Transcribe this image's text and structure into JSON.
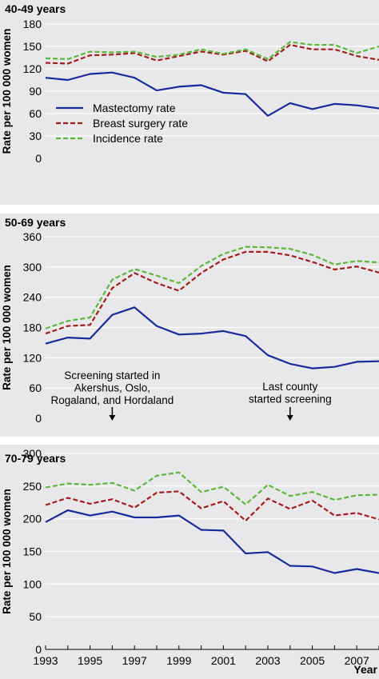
{
  "chart_data": [
    {
      "type": "line",
      "title": "40-49 years",
      "ylabel": "Rate per 100 000 women",
      "xlabel": "",
      "ylim": [
        0,
        180
      ],
      "yticks": [
        0,
        30,
        60,
        90,
        120,
        150,
        180
      ],
      "xlim": [
        1993,
        2008
      ],
      "grid": true,
      "legend": "lower-left",
      "x": [
        1993,
        1994,
        1995,
        1996,
        1997,
        1998,
        1999,
        2000,
        2001,
        2002,
        2003,
        2004,
        2005,
        2006,
        2007,
        2008
      ],
      "series": [
        {
          "name": "Mastectomy rate",
          "color": "#1a2a9c",
          "style": "solid",
          "values": [
            108,
            105,
            113,
            115,
            108,
            91,
            96,
            98,
            88,
            86,
            57,
            74,
            66,
            73,
            71,
            67
          ]
        },
        {
          "name": "Breast surgery rate",
          "color": "#a61c1c",
          "style": "dashed",
          "values": [
            128,
            127,
            138,
            139,
            141,
            131,
            137,
            143,
            139,
            144,
            130,
            152,
            146,
            146,
            137,
            132
          ]
        },
        {
          "name": "Incidence rate",
          "color": "#5cb83a",
          "style": "dashed",
          "values": [
            134,
            133,
            143,
            142,
            143,
            136,
            139,
            146,
            140,
            146,
            133,
            156,
            152,
            152,
            141,
            150
          ]
        }
      ]
    },
    {
      "type": "line",
      "title": "50-69 years",
      "ylabel": "Rate per 100 000 women",
      "xlabel": "",
      "ylim": [
        0,
        360
      ],
      "yticks": [
        0,
        60,
        120,
        180,
        240,
        300,
        360
      ],
      "xlim": [
        1993,
        2008
      ],
      "grid": true,
      "x": [
        1993,
        1994,
        1995,
        1996,
        1997,
        1998,
        1999,
        2000,
        2001,
        2002,
        2003,
        2004,
        2005,
        2006,
        2007,
        2008
      ],
      "series": [
        {
          "name": "Mastectomy rate",
          "color": "#1a2a9c",
          "style": "solid",
          "values": [
            148,
            160,
            158,
            205,
            220,
            183,
            166,
            168,
            173,
            163,
            125,
            108,
            99,
            102,
            112,
            113
          ]
        },
        {
          "name": "Breast surgery rate",
          "color": "#a61c1c",
          "style": "dashed",
          "values": [
            168,
            183,
            185,
            258,
            288,
            268,
            253,
            288,
            315,
            330,
            330,
            323,
            310,
            295,
            301,
            289
          ]
        },
        {
          "name": "Incidence rate",
          "color": "#5cb83a",
          "style": "dashed",
          "values": [
            178,
            193,
            200,
            275,
            296,
            283,
            268,
            302,
            326,
            340,
            339,
            336,
            324,
            305,
            312,
            309
          ]
        }
      ],
      "annotations": [
        {
          "text": [
            "Screening started in",
            "Akershus, Oslo,",
            "Rogaland, and Hordaland"
          ],
          "x": 1996
        },
        {
          "text": [
            "Last county",
            "started screening"
          ],
          "x": 2004
        }
      ]
    },
    {
      "type": "line",
      "title": "70-79 years",
      "ylabel": "Rate per 100 000 women",
      "xlabel": "Year",
      "ylim": [
        0,
        300
      ],
      "yticks": [
        0,
        50,
        100,
        150,
        200,
        250,
        300
      ],
      "xlim": [
        1993,
        2008
      ],
      "xticks": [
        1993,
        1995,
        1997,
        1999,
        2001,
        2003,
        2005,
        2007
      ],
      "grid": true,
      "x": [
        1993,
        1994,
        1995,
        1996,
        1997,
        1998,
        1999,
        2000,
        2001,
        2002,
        2003,
        2004,
        2005,
        2006,
        2007,
        2008
      ],
      "series": [
        {
          "name": "Mastectomy rate",
          "color": "#1a2a9c",
          "style": "solid",
          "values": [
            195,
            213,
            205,
            211,
            202,
            202,
            205,
            183,
            182,
            147,
            149,
            128,
            127,
            117,
            123,
            117
          ]
        },
        {
          "name": "Breast surgery rate",
          "color": "#a61c1c",
          "style": "dashed",
          "values": [
            221,
            232,
            223,
            230,
            217,
            240,
            242,
            216,
            227,
            197,
            231,
            215,
            228,
            205,
            209,
            199
          ]
        },
        {
          "name": "Incidence rate",
          "color": "#5cb83a",
          "style": "dashed",
          "values": [
            248,
            254,
            252,
            255,
            243,
            266,
            271,
            241,
            249,
            222,
            252,
            235,
            241,
            229,
            236,
            237
          ]
        }
      ]
    }
  ]
}
